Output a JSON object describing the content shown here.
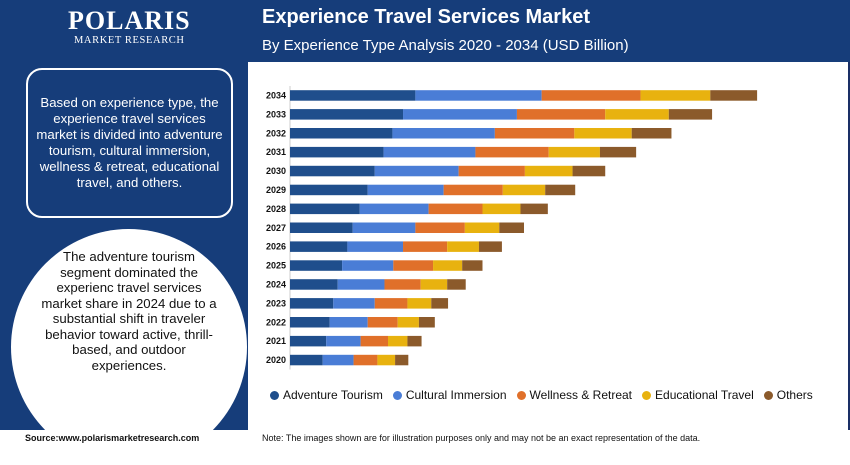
{
  "brand": {
    "name": "POLARIS",
    "tagline": "MARKET RESEARCH"
  },
  "header": {
    "title": "Experience Travel Services Market",
    "subtitle": "By Experience Type Analysis 2020 - 2034 (USD Billion)"
  },
  "sidebar": {
    "box_text": "Based on experience type, the experience travel services market is divided into adventure tourism, cultural immersion, wellness & retreat, educational travel, and others.",
    "circle_text": "The adventure tourism segment dominated the experienc travel services market share in 2024 due to a substantial shift in traveler behavior toward active, thrill-based, and outdoor experiences."
  },
  "footer": {
    "source": "Source:www.polarismarketresearch.com",
    "note": "Note: The images shown are for illustration purposes only and may not be an exact representation of the data."
  },
  "colors": {
    "header_bg": "#163d7a",
    "adventure": "#1f4e8c",
    "cultural": "#4a7dd6",
    "wellness": "#e0702a",
    "educational": "#e8b20f",
    "others": "#8b5a2b"
  },
  "chart_data": {
    "type": "bar",
    "orientation": "horizontal",
    "stacked": true,
    "categories": [
      "2034",
      "2033",
      "2032",
      "2031",
      "2030",
      "2029",
      "2028",
      "2027",
      "2026",
      "2025",
      "2024",
      "2023",
      "2022",
      "2021",
      "2020"
    ],
    "series": [
      {
        "name": "Adventure Tourism",
        "color": "#1f4e8c",
        "values": [
          14.2,
          12.8,
          11.6,
          10.6,
          9.6,
          8.8,
          7.9,
          7.1,
          6.5,
          5.9,
          5.4,
          4.9,
          4.5,
          4.1,
          3.7
        ]
      },
      {
        "name": "Cultural Immersion",
        "color": "#4a7dd6",
        "values": [
          14.3,
          12.9,
          11.6,
          10.4,
          9.5,
          8.6,
          7.8,
          7.1,
          6.3,
          5.8,
          5.3,
          4.7,
          4.3,
          3.9,
          3.5
        ]
      },
      {
        "name": "Wellness & Retreat",
        "color": "#e0702a",
        "values": [
          11.2,
          10.0,
          9.0,
          8.3,
          7.5,
          6.7,
          6.1,
          5.6,
          5.0,
          4.5,
          4.1,
          3.7,
          3.4,
          3.1,
          2.7
        ]
      },
      {
        "name": "Educational Travel",
        "color": "#e8b20f",
        "values": [
          7.9,
          7.2,
          6.5,
          5.8,
          5.4,
          4.8,
          4.3,
          3.9,
          3.6,
          3.3,
          3.0,
          2.7,
          2.4,
          2.2,
          2.0
        ]
      },
      {
        "name": "Others",
        "color": "#8b5a2b",
        "values": [
          5.3,
          4.9,
          4.5,
          4.1,
          3.7,
          3.4,
          3.1,
          2.8,
          2.6,
          2.3,
          2.1,
          1.9,
          1.8,
          1.6,
          1.5
        ]
      }
    ]
  }
}
